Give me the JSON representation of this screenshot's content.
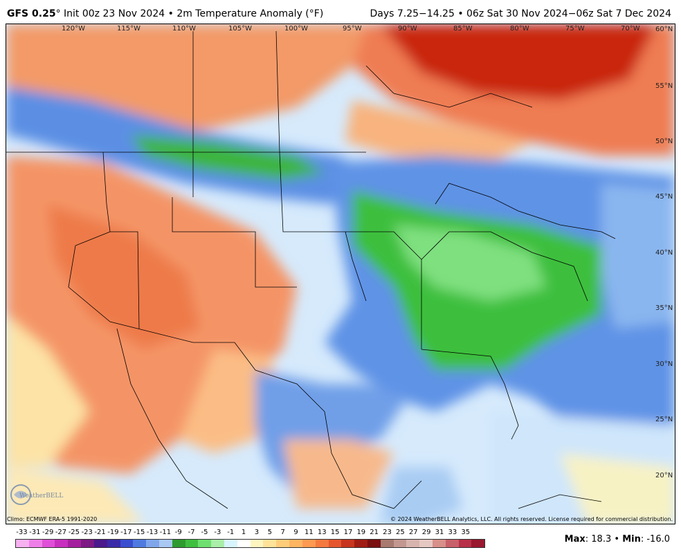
{
  "header": {
    "model": "GFS 0.25",
    "deg": "°",
    "init": "Init 00z 23 Nov 2024",
    "bullet": "•",
    "field": "2m Temperature Anomaly (°F)",
    "range": "Days 7.25−14.25 • 06z Sat 30 Nov 2024−06z Sat 7 Dec 2024"
  },
  "lon_labels": [
    "120°W",
    "115°W",
    "110°W",
    "105°W",
    "100°W",
    "95°W",
    "90°W",
    "85°W",
    "80°W",
    "75°W",
    "70°W"
  ],
  "lat_labels": [
    "60°N",
    "55°N",
    "50°N",
    "45°N",
    "40°N",
    "35°N",
    "30°N",
    "25°N",
    "20°N"
  ],
  "credits": {
    "climo": "Climo: ECMWF ERA-5 1991-2020",
    "copyright": "© 2024 WeatherBELL Analytics, LLC. All rights reserved. License required for commercial distribution.",
    "logo": "WeatherBELL"
  },
  "scale": {
    "labels": [
      "-33",
      "-31",
      "-29",
      "-27",
      "-25",
      "-23",
      "-21",
      "-19",
      "-17",
      "-15",
      "-13",
      "-11",
      "-9",
      "-7",
      "-5",
      "-3",
      "-1",
      "1",
      "3",
      "5",
      "7",
      "9",
      "11",
      "13",
      "15",
      "17",
      "19",
      "21",
      "23",
      "25",
      "27",
      "29",
      "31",
      "33",
      "35"
    ],
    "colors": [
      "#f7b0f0",
      "#ef7fe8",
      "#e04fd8",
      "#c92fbf",
      "#a5209e",
      "#7d1a84",
      "#4b1a8c",
      "#3a2ca8",
      "#3a4fd0",
      "#4f7ae0",
      "#7fa6ea",
      "#a9c8f2",
      "#2f9b2f",
      "#3fbf3f",
      "#6fdf6f",
      "#a9eea9",
      "#d8f5ff",
      "#ffffff",
      "#fff5c0",
      "#ffe39a",
      "#ffcd7a",
      "#ffb562",
      "#ff9a52",
      "#f57a40",
      "#e5562e",
      "#c8361f",
      "#a01d14",
      "#7a1010",
      "#a87a70",
      "#c29890",
      "#d8b4ae",
      "#e6c8c2",
      "#d8908a",
      "#c8606a",
      "#b83048",
      "#9a1830"
    ]
  },
  "stats": {
    "max_label": "Max",
    "max_value": "18.3",
    "min_label": "Min",
    "min_value": "-16.0",
    "sep": "•"
  },
  "colors": {
    "warm_deep": "#c8240e",
    "warm_mid": "#f08a5a",
    "warm_light": "#fbc78f",
    "cool_light": "#a8cdf3",
    "cool_mid": "#4f86e0",
    "cold_green": "#3dbf3d",
    "neutral": "#eef4ff"
  }
}
